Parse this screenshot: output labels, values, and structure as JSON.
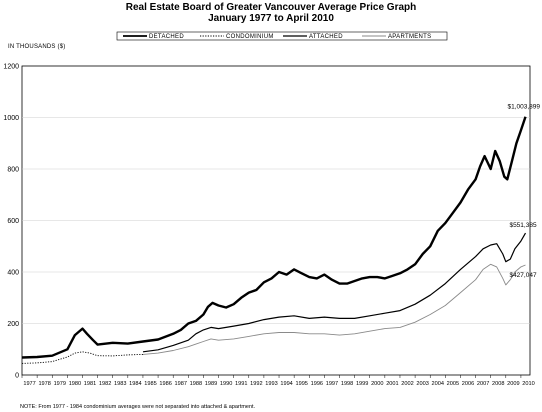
{
  "title_line1": "Real Estate Board of Greater Vancouver Average Price Graph",
  "title_line2": "January 1977 to April 2010",
  "y_unit_label": "IN THOUSANDS ($)",
  "note": "NOTE:  From 1977 - 1984 condominium averages were not separated into attached & apartment.",
  "chart_data": {
    "type": "line",
    "title": "Real Estate Board of Greater Vancouver Average Price Graph",
    "subtitle": "January 1977 to April 2010",
    "ylabel": "IN THOUSANDS ($)",
    "xlabel": "",
    "ylim": [
      0,
      1200
    ],
    "xlim": [
      1977.0,
      2010.6
    ],
    "yticks": [
      0,
      200,
      400,
      600,
      800,
      1000,
      1200
    ],
    "xticks": [
      "1977",
      "1978",
      "1979",
      "1980",
      "1981",
      "1982",
      "1983",
      "1984",
      "1985",
      "1986",
      "1987",
      "1988",
      "1989",
      "1990",
      "1991",
      "1992",
      "1993",
      "1994",
      "1995",
      "1996",
      "1997",
      "1998",
      "1999",
      "2000",
      "2001",
      "2002",
      "2003",
      "2004",
      "2005",
      "2006",
      "2007",
      "2008",
      "2009",
      "2010"
    ],
    "grid": true,
    "legend_position": "top",
    "series": [
      {
        "name": "DETACHED",
        "style": "thick-solid",
        "x": [
          1977.0,
          1978.0,
          1979.0,
          1980.0,
          1980.5,
          1981.0,
          1981.3,
          1981.7,
          1982.0,
          1983.0,
          1984.0,
          1985.0,
          1986.0,
          1987.0,
          1987.5,
          1988.0,
          1988.5,
          1989.0,
          1989.3,
          1989.6,
          1990.0,
          1990.5,
          1991.0,
          1991.5,
          1992.0,
          1992.5,
          1993.0,
          1993.5,
          1994.0,
          1994.5,
          1995.0,
          1995.5,
          1996.0,
          1996.5,
          1997.0,
          1997.5,
          1998.0,
          1998.5,
          1999.0,
          1999.5,
          2000.0,
          2000.5,
          2001.0,
          2001.5,
          2002.0,
          2002.5,
          2003.0,
          2003.5,
          2004.0,
          2004.5,
          2005.0,
          2005.5,
          2006.0,
          2006.5,
          2007.0,
          2007.3,
          2007.6,
          2008.0,
          2008.3,
          2008.6,
          2008.9,
          2009.1,
          2009.4,
          2009.7,
          2010.0,
          2010.3
        ],
        "y": [
          68,
          70,
          75,
          100,
          155,
          180,
          160,
          135,
          118,
          125,
          122,
          130,
          138,
          160,
          175,
          200,
          210,
          235,
          265,
          280,
          270,
          262,
          275,
          300,
          320,
          330,
          360,
          375,
          400,
          390,
          410,
          395,
          380,
          375,
          390,
          370,
          355,
          355,
          365,
          375,
          380,
          380,
          375,
          385,
          395,
          410,
          430,
          470,
          500,
          560,
          590,
          630,
          670,
          720,
          760,
          810,
          850,
          800,
          870,
          830,
          770,
          760,
          830,
          900,
          950,
          1003
        ]
      },
      {
        "name": "CONDOMINIUM",
        "style": "dotted",
        "x": [
          1977.0,
          1978.0,
          1979.0,
          1980.0,
          1980.5,
          1981.0,
          1981.5,
          1982.0,
          1983.0,
          1984.0,
          1985.0
        ],
        "y": [
          45,
          47,
          52,
          70,
          85,
          90,
          85,
          75,
          74,
          78,
          80
        ]
      },
      {
        "name": "ATTACHED",
        "style": "solid",
        "x": [
          1985.0,
          1986.0,
          1987.0,
          1988.0,
          1988.5,
          1989.0,
          1989.5,
          1990.0,
          1991.0,
          1992.0,
          1993.0,
          1994.0,
          1995.0,
          1996.0,
          1997.0,
          1998.0,
          1999.0,
          2000.0,
          2001.0,
          2002.0,
          2003.0,
          2004.0,
          2005.0,
          2006.0,
          2007.0,
          2007.5,
          2008.0,
          2008.4,
          2008.8,
          2009.0,
          2009.3,
          2009.6,
          2010.0,
          2010.3
        ],
        "y": [
          90,
          98,
          115,
          135,
          160,
          175,
          185,
          180,
          190,
          200,
          215,
          225,
          230,
          220,
          225,
          220,
          220,
          230,
          240,
          250,
          275,
          310,
          355,
          410,
          460,
          490,
          505,
          510,
          470,
          440,
          450,
          490,
          520,
          551
        ]
      },
      {
        "name": "APARTMENTS",
        "style": "thin-gray",
        "x": [
          1985.0,
          1986.0,
          1987.0,
          1988.0,
          1988.5,
          1989.0,
          1989.5,
          1990.0,
          1991.0,
          1992.0,
          1993.0,
          1994.0,
          1995.0,
          1996.0,
          1997.0,
          1998.0,
          1999.0,
          2000.0,
          2001.0,
          2002.0,
          2003.0,
          2004.0,
          2005.0,
          2006.0,
          2007.0,
          2007.5,
          2008.0,
          2008.4,
          2008.8,
          2009.0,
          2009.3,
          2009.6,
          2010.0,
          2010.3
        ],
        "y": [
          80,
          85,
          95,
          110,
          120,
          130,
          140,
          135,
          140,
          150,
          160,
          165,
          165,
          160,
          160,
          155,
          160,
          170,
          180,
          185,
          205,
          235,
          270,
          320,
          370,
          410,
          430,
          420,
          375,
          350,
          370,
          400,
          420,
          427
        ]
      }
    ],
    "annotations": [
      {
        "text": "$1,003,899",
        "x": 2010.3,
        "y": 1003
      },
      {
        "text": "$551,385",
        "x": 2010.3,
        "y": 551
      },
      {
        "text": "$427,047",
        "x": 2010.3,
        "y": 427
      }
    ]
  },
  "colors": {
    "detached": "#000000",
    "condominium": "#000000",
    "attached": "#000000",
    "apartments": "#8a8a8a",
    "grid": "#d0d0d0"
  }
}
